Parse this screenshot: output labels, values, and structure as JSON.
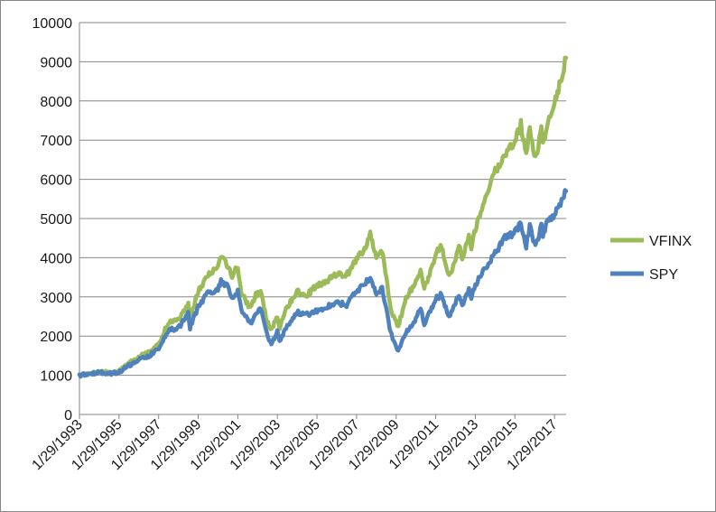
{
  "chart_data": {
    "type": "line",
    "title": "",
    "xlabel": "",
    "ylabel": "",
    "ylim": [
      0,
      10000
    ],
    "yticks": [
      0,
      1000,
      2000,
      3000,
      4000,
      5000,
      6000,
      7000,
      8000,
      9000,
      10000
    ],
    "xlim": [
      "1993-01-29",
      "2017-08-31"
    ],
    "xtick_labels": [
      "1/29/1993",
      "1/29/1995",
      "1/29/1997",
      "1/29/1999",
      "1/29/2001",
      "1/29/2003",
      "1/29/2005",
      "1/29/2007",
      "1/29/2009",
      "1/29/2011",
      "1/29/2013",
      "1/29/2015",
      "1/29/2017"
    ],
    "grid": true,
    "legend": "right",
    "series": [
      {
        "name": "VFINX",
        "color": "#9bbb59",
        "points": [
          [
            "1993-01-29",
            1000
          ],
          [
            "1993-07-29",
            1030
          ],
          [
            "1994-01-29",
            1090
          ],
          [
            "1994-07-29",
            1060
          ],
          [
            "1995-01-29",
            1100
          ],
          [
            "1995-07-29",
            1300
          ],
          [
            "1996-01-29",
            1480
          ],
          [
            "1996-07-29",
            1580
          ],
          [
            "1997-01-29",
            1800
          ],
          [
            "1997-07-29",
            2350
          ],
          [
            "1998-01-29",
            2400
          ],
          [
            "1998-07-29",
            2800
          ],
          [
            "1998-09-01",
            2450
          ],
          [
            "1999-01-29",
            3150
          ],
          [
            "1999-07-29",
            3550
          ],
          [
            "2000-01-29",
            3800
          ],
          [
            "2000-03-25",
            4000
          ],
          [
            "2000-07-29",
            3800
          ],
          [
            "2000-10-15",
            3500
          ],
          [
            "2001-01-29",
            3800
          ],
          [
            "2001-04-01",
            3100
          ],
          [
            "2001-09-20",
            2700
          ],
          [
            "2001-12-29",
            3050
          ],
          [
            "2002-03-29",
            3100
          ],
          [
            "2002-07-22",
            2400
          ],
          [
            "2002-10-09",
            2150
          ],
          [
            "2003-01-29",
            2500
          ],
          [
            "2003-03-11",
            2200
          ],
          [
            "2003-07-29",
            2750
          ],
          [
            "2004-01-29",
            3150
          ],
          [
            "2004-07-29",
            3050
          ],
          [
            "2005-01-29",
            3300
          ],
          [
            "2005-07-29",
            3400
          ],
          [
            "2006-01-29",
            3600
          ],
          [
            "2006-07-29",
            3550
          ],
          [
            "2007-01-29",
            3950
          ],
          [
            "2007-07-15",
            4250
          ],
          [
            "2007-10-09",
            4600
          ],
          [
            "2008-01-29",
            4050
          ],
          [
            "2008-05-15",
            4200
          ],
          [
            "2008-07-15",
            3650
          ],
          [
            "2008-10-15",
            2700
          ],
          [
            "2009-03-09",
            2250
          ],
          [
            "2009-07-29",
            2950
          ],
          [
            "2010-01-29",
            3400
          ],
          [
            "2010-04-25",
            3700
          ],
          [
            "2010-07-01",
            3200
          ],
          [
            "2011-01-29",
            4050
          ],
          [
            "2011-04-29",
            4350
          ],
          [
            "2011-10-03",
            3500
          ],
          [
            "2012-01-29",
            4000
          ],
          [
            "2012-04-01",
            4350
          ],
          [
            "2012-06-01",
            3950
          ],
          [
            "2012-10-01",
            4550
          ],
          [
            "2012-11-15",
            4250
          ],
          [
            "2013-01-29",
            4750
          ],
          [
            "2013-07-29",
            5500
          ],
          [
            "2014-01-29",
            6200
          ],
          [
            "2014-07-29",
            6600
          ],
          [
            "2015-01-29",
            7000
          ],
          [
            "2015-05-20",
            7400
          ],
          [
            "2015-08-25",
            6600
          ],
          [
            "2015-11-01",
            7300
          ],
          [
            "2016-02-11",
            6500
          ],
          [
            "2016-06-01",
            7300
          ],
          [
            "2016-06-27",
            6900
          ],
          [
            "2016-10-01",
            7450
          ],
          [
            "2017-01-29",
            7900
          ],
          [
            "2017-04-29",
            8400
          ],
          [
            "2017-08-31",
            9100
          ]
        ]
      },
      {
        "name": "SPY",
        "color": "#4f81bd",
        "points": [
          [
            "1993-01-29",
            1000
          ],
          [
            "1993-07-29",
            1030
          ],
          [
            "1994-01-29",
            1080
          ],
          [
            "1994-07-29",
            1040
          ],
          [
            "1995-01-29",
            1080
          ],
          [
            "1995-07-29",
            1250
          ],
          [
            "1996-01-29",
            1400
          ],
          [
            "1996-07-29",
            1480
          ],
          [
            "1997-01-29",
            1700
          ],
          [
            "1997-07-29",
            2150
          ],
          [
            "1998-01-29",
            2200
          ],
          [
            "1998-07-29",
            2600
          ],
          [
            "1998-09-01",
            2200
          ],
          [
            "1999-01-29",
            2750
          ],
          [
            "1999-07-29",
            3100
          ],
          [
            "2000-01-29",
            3200
          ],
          [
            "2000-03-25",
            3400
          ],
          [
            "2000-07-29",
            3250
          ],
          [
            "2000-10-15",
            2950
          ],
          [
            "2001-01-29",
            3150
          ],
          [
            "2001-04-01",
            2650
          ],
          [
            "2001-09-20",
            2300
          ],
          [
            "2001-12-29",
            2600
          ],
          [
            "2002-03-29",
            2700
          ],
          [
            "2002-07-22",
            2050
          ],
          [
            "2002-10-09",
            1800
          ],
          [
            "2003-01-29",
            2100
          ],
          [
            "2003-03-11",
            1850
          ],
          [
            "2003-07-29",
            2250
          ],
          [
            "2004-01-29",
            2600
          ],
          [
            "2004-07-29",
            2550
          ],
          [
            "2005-01-29",
            2650
          ],
          [
            "2005-07-29",
            2750
          ],
          [
            "2006-01-29",
            2850
          ],
          [
            "2006-07-29",
            2800
          ],
          [
            "2007-01-29",
            3150
          ],
          [
            "2007-07-15",
            3350
          ],
          [
            "2007-10-09",
            3500
          ],
          [
            "2008-01-29",
            3050
          ],
          [
            "2008-05-15",
            3250
          ],
          [
            "2008-07-15",
            2800
          ],
          [
            "2008-10-15",
            2100
          ],
          [
            "2009-03-09",
            1600
          ],
          [
            "2009-07-29",
            2100
          ],
          [
            "2010-01-29",
            2450
          ],
          [
            "2010-04-25",
            2700
          ],
          [
            "2010-07-01",
            2300
          ],
          [
            "2011-01-29",
            2950
          ],
          [
            "2011-04-29",
            3050
          ],
          [
            "2011-10-03",
            2500
          ],
          [
            "2012-01-29",
            2850
          ],
          [
            "2012-04-01",
            3050
          ],
          [
            "2012-06-01",
            2800
          ],
          [
            "2012-10-01",
            3200
          ],
          [
            "2012-11-15",
            2950
          ],
          [
            "2013-01-29",
            3300
          ],
          [
            "2013-07-29",
            3750
          ],
          [
            "2014-01-29",
            4100
          ],
          [
            "2014-07-29",
            4500
          ],
          [
            "2015-01-29",
            4650
          ],
          [
            "2015-05-20",
            4850
          ],
          [
            "2015-08-25",
            4300
          ],
          [
            "2015-11-01",
            4800
          ],
          [
            "2016-02-11",
            4250
          ],
          [
            "2016-06-01",
            4800
          ],
          [
            "2016-06-27",
            4550
          ],
          [
            "2016-10-01",
            4950
          ],
          [
            "2017-01-29",
            5100
          ],
          [
            "2017-04-29",
            5350
          ],
          [
            "2017-08-31",
            5700
          ]
        ]
      }
    ]
  }
}
